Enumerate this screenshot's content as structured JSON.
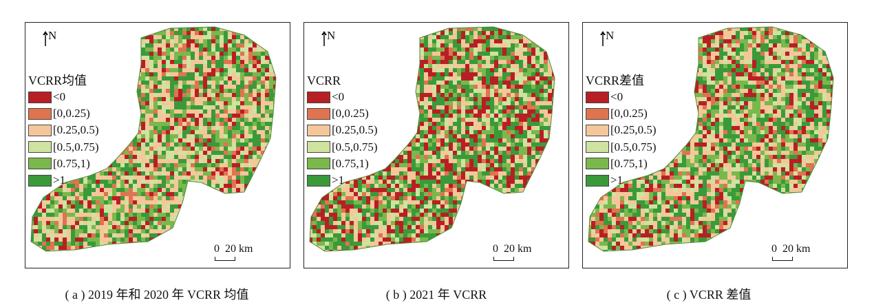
{
  "north_label": "N",
  "legend_items": [
    {
      "label": "<0",
      "color": "#b81f24"
    },
    {
      "label": "[0,0.25)",
      "color": "#e07350"
    },
    {
      "label": "[0.25,0.5)",
      "color": "#f3c79a"
    },
    {
      "label": "[0.5,0.75)",
      "color": "#cfe2a0"
    },
    {
      "label": "[0.75,1)",
      "color": "#7bb84c"
    },
    {
      "label": ">1",
      "color": "#3a9a3a"
    }
  ],
  "scale": {
    "zero": "0",
    "distance": "20 km"
  },
  "panels": [
    {
      "legend_title": "VCRR均值",
      "caption": "( a ) 2019 年和 2020 年 VCRR 均值",
      "weights": [
        0.12,
        0.08,
        0.26,
        0.14,
        0.16,
        0.24
      ]
    },
    {
      "legend_title": "VCRR",
      "caption": "( b ) 2021 年 VCRR",
      "weights": [
        0.22,
        0.06,
        0.18,
        0.12,
        0.14,
        0.28
      ]
    },
    {
      "legend_title": "VCRR差值",
      "caption": "( c ) VCRR 差值",
      "weights": [
        0.14,
        0.07,
        0.24,
        0.14,
        0.17,
        0.24
      ]
    }
  ]
}
